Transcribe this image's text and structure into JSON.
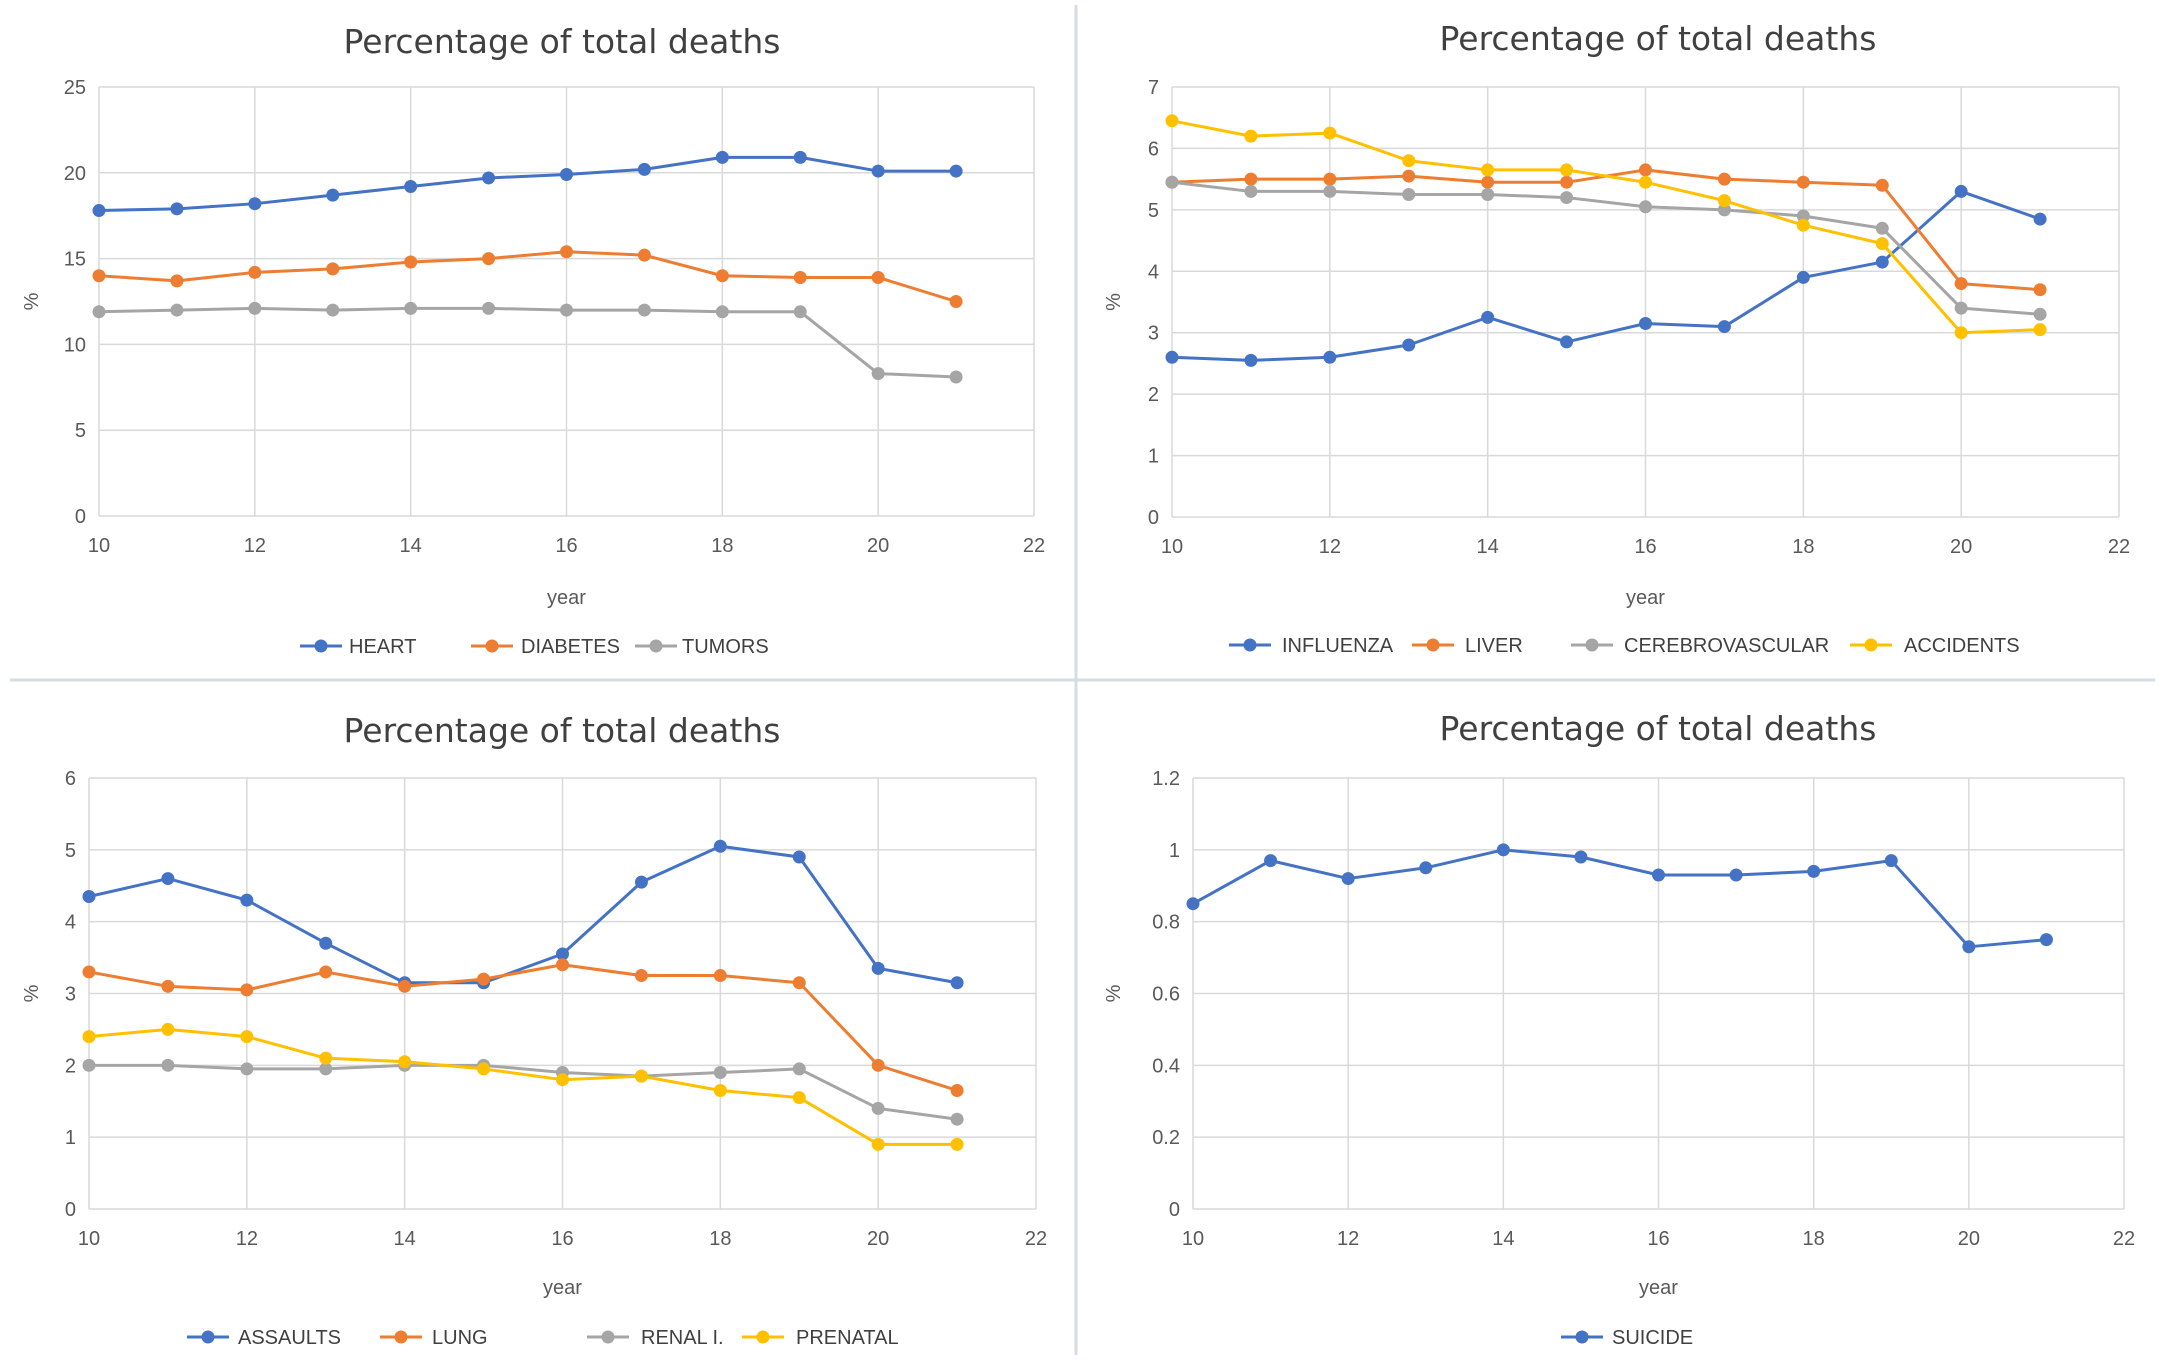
{
  "colors": {
    "blue": "#4472c4",
    "orange": "#ed7d31",
    "gray": "#a5a5a5",
    "yellow": "#ffc000"
  },
  "chart_data": [
    {
      "type": "line",
      "title": "Percentage of total deaths",
      "xlabel": "year",
      "ylabel": "%",
      "xlim": [
        10,
        22
      ],
      "xticks": [
        10,
        12,
        14,
        16,
        18,
        20,
        22
      ],
      "ylim": [
        0,
        25
      ],
      "yticks": [
        0,
        5,
        10,
        15,
        20,
        25
      ],
      "legend_position": "bottom",
      "series": [
        {
          "name": "HEART",
          "color": "blue",
          "x": [
            10,
            11,
            12,
            13,
            14,
            15,
            16,
            17,
            18,
            19,
            20,
            21
          ],
          "values": [
            17.8,
            17.9,
            18.2,
            18.7,
            19.2,
            19.7,
            19.9,
            20.2,
            20.9,
            20.9,
            20.1,
            20.1
          ]
        },
        {
          "name": "DIABETES",
          "color": "orange",
          "x": [
            10,
            11,
            12,
            13,
            14,
            15,
            16,
            17,
            18,
            19,
            20,
            21
          ],
          "values": [
            14.0,
            13.7,
            14.2,
            14.4,
            14.8,
            15.0,
            15.4,
            15.2,
            14.0,
            13.9,
            13.9,
            12.5
          ]
        },
        {
          "name": "TUMORS",
          "color": "gray",
          "x": [
            10,
            11,
            12,
            13,
            14,
            15,
            16,
            17,
            18,
            19,
            20,
            21
          ],
          "values": [
            11.9,
            12.0,
            12.1,
            12.0,
            12.1,
            12.1,
            12.0,
            12.0,
            11.9,
            11.9,
            8.3,
            8.1
          ]
        }
      ]
    },
    {
      "type": "line",
      "title": "Percentage of total deaths",
      "xlabel": "year",
      "ylabel": "%",
      "xlim": [
        10,
        22
      ],
      "xticks": [
        10,
        12,
        14,
        16,
        18,
        20,
        22
      ],
      "ylim": [
        0,
        7
      ],
      "yticks": [
        0,
        1,
        2,
        3,
        4,
        5,
        6,
        7
      ],
      "legend_position": "bottom",
      "series": [
        {
          "name": "INFLUENZA",
          "color": "blue",
          "x": [
            10,
            11,
            12,
            13,
            14,
            15,
            16,
            17,
            18,
            19,
            20,
            21
          ],
          "values": [
            2.6,
            2.55,
            2.6,
            2.8,
            3.25,
            2.85,
            3.15,
            3.1,
            3.9,
            4.15,
            5.3,
            4.85
          ]
        },
        {
          "name": "LIVER",
          "color": "orange",
          "x": [
            10,
            11,
            12,
            13,
            14,
            15,
            16,
            17,
            18,
            19,
            20,
            21
          ],
          "values": [
            5.45,
            5.5,
            5.5,
            5.55,
            5.45,
            5.45,
            5.65,
            5.5,
            5.45,
            5.4,
            3.8,
            3.7
          ]
        },
        {
          "name": "CEREBROVASCULAR",
          "color": "gray",
          "x": [
            10,
            11,
            12,
            13,
            14,
            15,
            16,
            17,
            18,
            19,
            20,
            21
          ],
          "values": [
            5.45,
            5.3,
            5.3,
            5.25,
            5.25,
            5.2,
            5.05,
            5.0,
            4.9,
            4.7,
            3.4,
            3.3
          ]
        },
        {
          "name": "ACCIDENTS",
          "color": "yellow",
          "x": [
            10,
            11,
            12,
            13,
            14,
            15,
            16,
            17,
            18,
            19,
            20,
            21
          ],
          "values": [
            6.45,
            6.2,
            6.25,
            5.8,
            5.65,
            5.65,
            5.45,
            5.15,
            4.75,
            4.45,
            3.0,
            3.05
          ]
        }
      ]
    },
    {
      "type": "line",
      "title": "Percentage of total deaths",
      "xlabel": "year",
      "ylabel": "%",
      "xlim": [
        10,
        22
      ],
      "xticks": [
        10,
        12,
        14,
        16,
        18,
        20,
        22
      ],
      "ylim": [
        0,
        6
      ],
      "yticks": [
        0,
        1,
        2,
        3,
        4,
        5,
        6
      ],
      "legend_position": "bottom",
      "series": [
        {
          "name": "ASSAULTS",
          "color": "blue",
          "x": [
            10,
            11,
            12,
            13,
            14,
            15,
            16,
            17,
            18,
            19,
            20,
            21
          ],
          "values": [
            4.35,
            4.6,
            4.3,
            3.7,
            3.15,
            3.15,
            3.55,
            4.55,
            5.05,
            4.9,
            3.35,
            3.15
          ]
        },
        {
          "name": "LUNG",
          "color": "orange",
          "x": [
            10,
            11,
            12,
            13,
            14,
            15,
            16,
            17,
            18,
            19,
            20,
            21
          ],
          "values": [
            3.3,
            3.1,
            3.05,
            3.3,
            3.1,
            3.2,
            3.4,
            3.25,
            3.25,
            3.15,
            2.0,
            1.65
          ]
        },
        {
          "name": "RENAL I.",
          "color": "gray",
          "x": [
            10,
            11,
            12,
            13,
            14,
            15,
            16,
            17,
            18,
            19,
            20,
            21
          ],
          "values": [
            2.0,
            2.0,
            1.95,
            1.95,
            2.0,
            2.0,
            1.9,
            1.85,
            1.9,
            1.95,
            1.4,
            1.25
          ]
        },
        {
          "name": "PRENATAL",
          "color": "yellow",
          "x": [
            10,
            11,
            12,
            13,
            14,
            15,
            16,
            17,
            18,
            19,
            20,
            21
          ],
          "values": [
            2.4,
            2.5,
            2.4,
            2.1,
            2.05,
            1.95,
            1.8,
            1.85,
            1.65,
            1.55,
            0.9,
            0.9
          ]
        }
      ]
    },
    {
      "type": "line",
      "title": "Percentage of total deaths",
      "xlabel": "year",
      "ylabel": "%",
      "xlim": [
        10,
        22
      ],
      "xticks": [
        10,
        12,
        14,
        16,
        18,
        20,
        22
      ],
      "ylim": [
        0,
        1.2
      ],
      "yticks": [
        0,
        0.2,
        0.4,
        0.6,
        0.8,
        1,
        1.2
      ],
      "legend_position": "bottom",
      "series": [
        {
          "name": "SUICIDE",
          "color": "blue",
          "x": [
            10,
            11,
            12,
            13,
            14,
            15,
            16,
            17,
            18,
            19,
            20,
            21
          ],
          "values": [
            0.85,
            0.97,
            0.92,
            0.95,
            1.0,
            0.98,
            0.93,
            0.93,
            0.94,
            0.97,
            0.73,
            0.75
          ]
        }
      ]
    }
  ]
}
